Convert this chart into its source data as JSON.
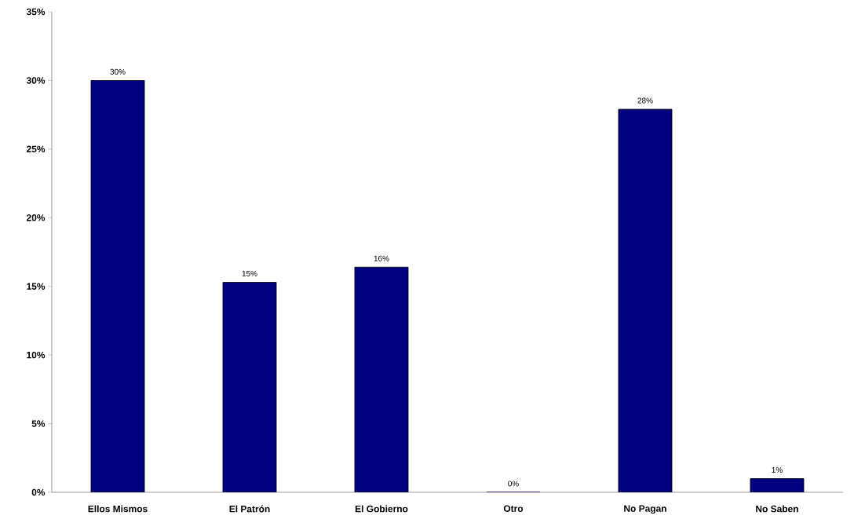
{
  "chart_data": {
    "type": "bar",
    "categories": [
      "Ellos Mismos",
      "El Patrón",
      "El Gobierno",
      "Otro",
      "No Pagan",
      "No Saben"
    ],
    "values": [
      30,
      15.3,
      16.4,
      0,
      27.9,
      1
    ],
    "value_labels": [
      "30%",
      "15%",
      "16%",
      "0%",
      "28%",
      "1%"
    ],
    "color": "#000080",
    "ylim": [
      0,
      35
    ],
    "yticks": [
      {
        "value": 0,
        "label": "0%"
      },
      {
        "value": 5,
        "label": "5%"
      },
      {
        "value": 10,
        "label": "10%"
      },
      {
        "value": 15,
        "label": "15%"
      },
      {
        "value": 20,
        "label": "20%"
      },
      {
        "value": 25,
        "label": "25%"
      },
      {
        "value": 30,
        "label": "30%"
      },
      {
        "value": 35,
        "label": "35%"
      }
    ],
    "grid": false
  }
}
